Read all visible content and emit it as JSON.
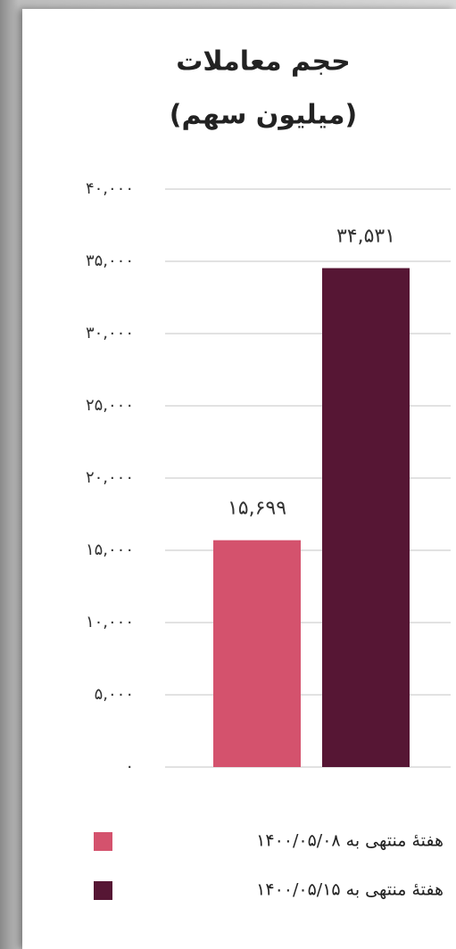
{
  "chart_data": {
    "type": "bar",
    "title": "حجم معاملات",
    "subtitle": "(میلیون سهم)",
    "series": [
      {
        "name": "هفتهٔ منتهی به ۱۴۰۰/۰۵/۰۸",
        "color": "#d4526d",
        "values": [
          15699
        ],
        "value_labels": [
          "۱۵,۶۹۹"
        ]
      },
      {
        "name": "هفتهٔ منتهی به ۱۴۰۰/۰۵/۱۵",
        "color": "#561634",
        "values": [
          34531
        ],
        "value_labels": [
          "۳۴,۵۳۱"
        ]
      }
    ],
    "ylim": [
      0,
      40000
    ],
    "yticks": [
      {
        "value": 0,
        "label": "۰"
      },
      {
        "value": 5000,
        "label": "۵,۰۰۰"
      },
      {
        "value": 10000,
        "label": "۱۰,۰۰۰"
      },
      {
        "value": 15000,
        "label": "۱۵,۰۰۰"
      },
      {
        "value": 20000,
        "label": "۲۰,۰۰۰"
      },
      {
        "value": 25000,
        "label": "۲۵,۰۰۰"
      },
      {
        "value": 30000,
        "label": "۳۰,۰۰۰"
      },
      {
        "value": 35000,
        "label": "۳۵,۰۰۰"
      },
      {
        "value": 40000,
        "label": "۴۰,۰۰۰"
      }
    ],
    "grid": true,
    "legend": "bottom"
  }
}
